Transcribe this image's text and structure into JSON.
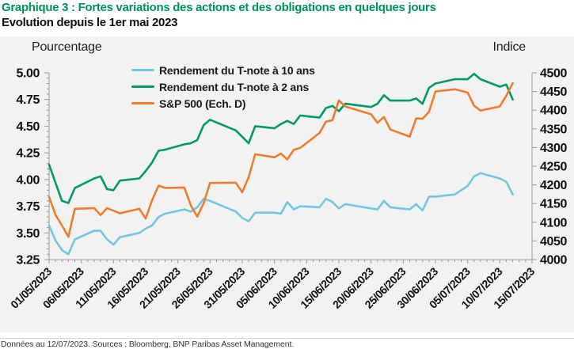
{
  "header": {
    "title": "Graphique 3 : Fortes variations des actions et des obligations en quelques jours",
    "subtitle": "Evolution depuis le 1er mai 2023"
  },
  "axes": {
    "left_unit": "Pourcentage",
    "right_unit": "Indice",
    "left_ticks": [
      "3.25",
      "3.50",
      "3.75",
      "4.00",
      "4.25",
      "4.50",
      "4.75",
      "5.00"
    ],
    "right_ticks": [
      "4000",
      "4050",
      "4100",
      "4150",
      "4200",
      "4250",
      "4300",
      "4350",
      "4400",
      "4450",
      "4500"
    ],
    "x_tick_labels": [
      "01/05/2023",
      "06/05/2023",
      "11/05/2023",
      "16/05/2023",
      "21/05/2023",
      "26/05/2023",
      "31/05/2023",
      "05/06/2023",
      "10/06/2023",
      "15/06/2023",
      "20/06/2023",
      "25/06/2023",
      "30/06/2023",
      "05/07/2023",
      "10/07/2023",
      "15/07/2023"
    ]
  },
  "footer": {
    "note": "Données au 12/07/2023. Sources : Bloomberg, BNP Paribas Asset Management."
  },
  "colors": {
    "title_green": "#00915A",
    "panel_bg": "#F2F2F2",
    "axis_gray": "#999999",
    "tick_label": "#111111"
  },
  "chart_data": {
    "type": "line",
    "title": "Fortes variations des actions et des obligations en quelques jours",
    "subtitle": "Evolution depuis le 1er mai 2023",
    "legend_position": "top-center-left inside plot",
    "grid": false,
    "x_axis": {
      "start": "01/05/2023",
      "end": "15/07/2023",
      "span_days": 75,
      "tick_labels": [
        "01/05/2023",
        "06/05/2023",
        "11/05/2023",
        "16/05/2023",
        "21/05/2023",
        "26/05/2023",
        "31/05/2023",
        "05/06/2023",
        "10/06/2023",
        "15/06/2023",
        "20/06/2023",
        "25/06/2023",
        "30/06/2023",
        "05/07/2023",
        "10/07/2023",
        "15/07/2023"
      ]
    },
    "left_axis": {
      "label": "Pourcentage",
      "range": [
        3.25,
        5.0
      ],
      "tick_step": 0.25
    },
    "right_axis": {
      "label": "Indice",
      "range": [
        4000,
        4500
      ],
      "tick_step": 50
    },
    "dates": [
      "01/05",
      "02/05",
      "03/05",
      "04/05",
      "05/05",
      "08/05",
      "09/05",
      "10/05",
      "11/05",
      "12/05",
      "15/05",
      "16/05",
      "17/05",
      "18/05",
      "19/05",
      "22/05",
      "23/05",
      "24/05",
      "25/05",
      "26/05",
      "30/05",
      "31/05",
      "01/06",
      "02/06",
      "05/06",
      "06/06",
      "07/06",
      "08/06",
      "09/06",
      "12/06",
      "13/06",
      "14/06",
      "15/06",
      "16/06",
      "20/06",
      "21/06",
      "22/06",
      "23/06",
      "26/06",
      "27/06",
      "28/06",
      "29/06",
      "30/06",
      "03/07",
      "05/07",
      "06/07",
      "07/07",
      "10/07",
      "11/07",
      "12/07"
    ],
    "series": [
      {
        "name": "Rendement du T-note à 10 ans",
        "axis": "left",
        "color": "#72C7E0",
        "values": [
          3.57,
          3.43,
          3.34,
          3.3,
          3.44,
          3.52,
          3.52,
          3.44,
          3.39,
          3.46,
          3.5,
          3.54,
          3.57,
          3.65,
          3.68,
          3.72,
          3.7,
          3.74,
          3.82,
          3.8,
          3.7,
          3.64,
          3.61,
          3.69,
          3.69,
          3.68,
          3.79,
          3.72,
          3.75,
          3.74,
          3.82,
          3.79,
          3.73,
          3.77,
          3.73,
          3.72,
          3.8,
          3.74,
          3.72,
          3.77,
          3.71,
          3.84,
          3.84,
          3.86,
          3.94,
          4.03,
          4.06,
          4.01,
          3.98,
          3.86
        ]
      },
      {
        "name": "Rendement du T-note à 2 ans",
        "axis": "left",
        "color": "#009A63",
        "values": [
          4.14,
          3.97,
          3.8,
          3.78,
          3.92,
          4.01,
          4.03,
          3.91,
          3.9,
          3.99,
          4.01,
          4.08,
          4.16,
          4.27,
          4.28,
          4.33,
          4.34,
          4.37,
          4.51,
          4.56,
          4.46,
          4.4,
          4.34,
          4.5,
          4.48,
          4.52,
          4.55,
          4.52,
          4.6,
          4.58,
          4.67,
          4.69,
          4.64,
          4.71,
          4.68,
          4.71,
          4.79,
          4.74,
          4.74,
          4.76,
          4.71,
          4.86,
          4.9,
          4.94,
          4.94,
          4.99,
          4.94,
          4.87,
          4.89,
          4.75
        ]
      },
      {
        "name": "S&P 500 (Ech. D)",
        "axis": "right",
        "color": "#ED7D2E",
        "values": [
          4168,
          4120,
          4091,
          4061,
          4136,
          4138,
          4119,
          4138,
          4131,
          4124,
          4136,
          4110,
          4159,
          4198,
          4192,
          4193,
          4146,
          4115,
          4151,
          4205,
          4206,
          4180,
          4221,
          4282,
          4274,
          4284,
          4268,
          4294,
          4299,
          4339,
          4369,
          4373,
          4426,
          4410,
          4389,
          4366,
          4382,
          4348,
          4329,
          4378,
          4377,
          4396,
          4450,
          4456,
          4447,
          4412,
          4399,
          4410,
          4439,
          4472
        ]
      }
    ]
  }
}
